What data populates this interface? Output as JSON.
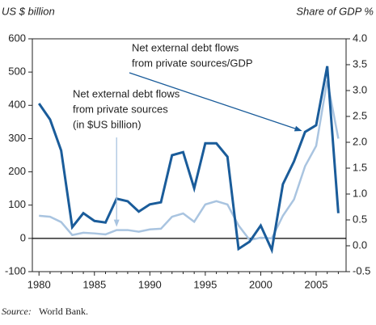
{
  "chart_data": {
    "type": "line",
    "y_label": "US $ billion",
    "y2_label": "Share of GDP %",
    "x": [
      1980,
      1981,
      1982,
      1983,
      1984,
      1985,
      1986,
      1987,
      1988,
      1989,
      1990,
      1991,
      1992,
      1993,
      1994,
      1995,
      1996,
      1997,
      1998,
      1999,
      2000,
      2001,
      2002,
      2003,
      2004,
      2005,
      2006,
      2007
    ],
    "series": [
      {
        "name": "Net external debt flows from private sources/GDP",
        "color": "#1a5c9a",
        "axis": "y2",
        "values": [
          2.75,
          2.44,
          1.84,
          0.36,
          0.63,
          0.48,
          0.45,
          0.91,
          0.86,
          0.66,
          0.8,
          0.84,
          1.75,
          1.81,
          1.11,
          1.98,
          1.98,
          1.72,
          -0.06,
          0.08,
          0.39,
          -0.08,
          1.19,
          1.63,
          2.2,
          2.33,
          3.47,
          0.63
        ]
      },
      {
        "name": "Net external debt flows from private sources (in $US billion)",
        "color": "#a9c4e0",
        "axis": "y",
        "values": [
          68,
          65,
          49,
          10,
          17,
          15,
          12,
          25,
          25,
          20,
          27,
          29,
          65,
          75,
          50,
          102,
          112,
          102,
          39,
          -5,
          2,
          0,
          68,
          117,
          217,
          278,
          475,
          300
        ]
      }
    ],
    "annotations": [
      {
        "lines": [
          "Net external debt flows",
          "from private sources/GDP"
        ],
        "series": 0,
        "x": 2004
      },
      {
        "lines": [
          "Net external debt flows",
          "from private sources",
          "(in $US billion)"
        ],
        "series": 1,
        "x": 1987
      }
    ],
    "xlim": [
      1979.4,
      2007.7
    ],
    "xticks": [
      1980,
      1985,
      1990,
      1995,
      2000,
      2005
    ],
    "ylim": [
      -100,
      600
    ],
    "yticks": [
      -100,
      0,
      100,
      200,
      300,
      400,
      500,
      600
    ],
    "y2lim": [
      -0.5,
      4.0
    ],
    "y2ticks": [
      -0.5,
      {
        "value": 0,
        "label": "0.0"
      },
      0.5,
      {
        "value": 1,
        "label": "1.0"
      },
      1.5,
      {
        "value": 2,
        "label": "2.0"
      },
      2.5,
      {
        "value": 3,
        "label": "3.0"
      },
      3.5,
      {
        "value": 4,
        "label": "4.0"
      }
    ]
  },
  "source": {
    "label": "Source:",
    "text": "World Bank."
  }
}
